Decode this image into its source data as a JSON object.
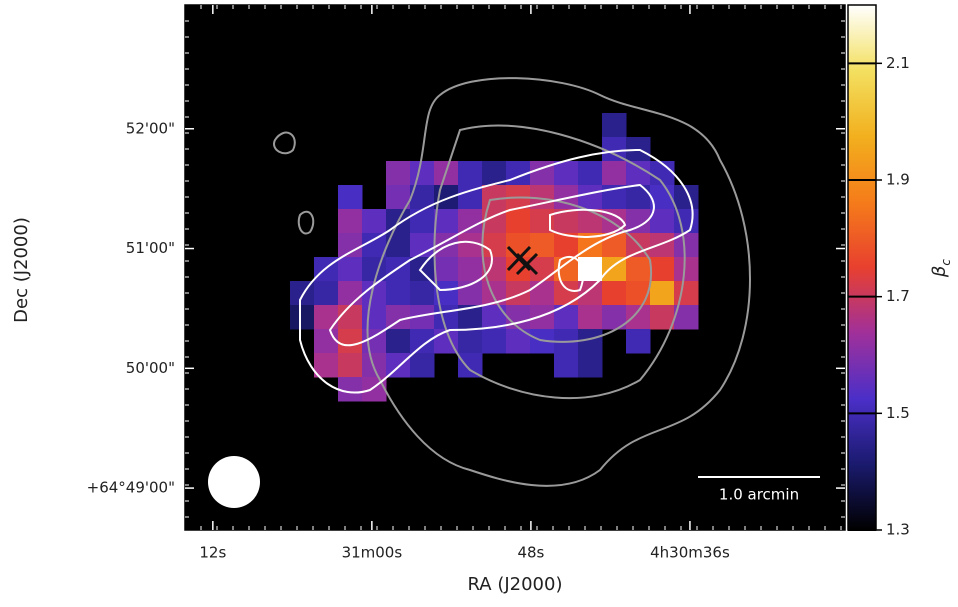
{
  "chart_data": {
    "type": "image",
    "xlabel": "RA (J2000)",
    "ylabel": "Dec (J2000)",
    "xlim": [
      74.1,
      24.3
    ],
    "xticks": [
      {
        "value": 72,
        "label": "12s"
      },
      {
        "value": 60,
        "label": "31m00s"
      },
      {
        "value": 48,
        "label": "48s"
      },
      {
        "value": 36,
        "label": "4h30m36s"
      }
    ],
    "ylim": [
      -21,
      242
    ],
    "yticks": [
      {
        "value": 0,
        "label": "+64°49'00\""
      },
      {
        "value": 60,
        "label": "50'00\""
      },
      {
        "value": 120,
        "label": "51'00\""
      },
      {
        "value": 180,
        "label": "52'00\""
      }
    ],
    "z": [
      [
        null,
        null,
        null,
        null,
        null,
        null,
        null,
        null,
        null,
        null,
        null,
        null,
        null,
        1.45,
        null,
        null,
        null
      ],
      [
        null,
        null,
        null,
        null,
        null,
        null,
        null,
        null,
        null,
        null,
        null,
        null,
        null,
        1.5,
        1.45,
        null,
        null
      ],
      [
        null,
        null,
        null,
        null,
        1.6,
        1.55,
        1.62,
        1.5,
        1.45,
        1.5,
        1.6,
        1.55,
        1.5,
        1.62,
        1.55,
        1.5,
        null
      ],
      [
        null,
        null,
        1.52,
        null,
        1.58,
        1.48,
        1.42,
        1.5,
        1.7,
        1.72,
        1.68,
        1.62,
        1.55,
        1.5,
        1.48,
        1.52,
        1.45
      ],
      [
        null,
        null,
        1.62,
        1.55,
        1.45,
        1.5,
        1.55,
        1.62,
        1.7,
        1.75,
        1.72,
        1.7,
        1.68,
        1.65,
        1.6,
        1.55,
        1.5
      ],
      [
        null,
        null,
        1.6,
        1.5,
        1.45,
        1.55,
        1.6,
        1.65,
        1.72,
        1.78,
        1.8,
        1.75,
        1.85,
        1.8,
        1.7,
        1.68,
        1.6
      ],
      [
        null,
        1.5,
        1.55,
        1.48,
        1.5,
        1.45,
        1.58,
        1.62,
        1.68,
        1.75,
        1.72,
        1.82,
        2.2,
        1.95,
        1.8,
        1.75,
        1.65
      ],
      [
        1.45,
        1.48,
        1.62,
        1.55,
        1.5,
        1.48,
        1.52,
        1.6,
        1.65,
        1.7,
        1.65,
        1.72,
        1.68,
        1.75,
        1.78,
        1.95,
        1.72
      ],
      [
        1.4,
        1.65,
        1.7,
        1.55,
        1.6,
        1.58,
        1.5,
        1.45,
        1.55,
        1.6,
        1.62,
        1.55,
        1.65,
        1.6,
        1.65,
        1.7,
        1.6
      ],
      [
        null,
        1.62,
        1.72,
        1.58,
        1.45,
        1.5,
        1.55,
        1.48,
        1.5,
        1.55,
        1.52,
        1.5,
        1.45,
        null,
        1.5,
        null,
        null
      ],
      [
        null,
        1.65,
        1.7,
        1.6,
        1.55,
        1.48,
        null,
        1.5,
        null,
        null,
        null,
        1.5,
        1.45,
        null,
        null,
        null,
        null
      ],
      [
        null,
        null,
        1.6,
        1.62,
        null,
        null,
        null,
        null,
        null,
        null,
        null,
        null,
        null,
        null,
        null,
        null,
        null
      ]
    ],
    "colorbar": {
      "symbol": "β",
      "subscript": "c",
      "clim": [
        1.3,
        2.2
      ],
      "ticks": [
        1.3,
        1.5,
        1.7,
        1.9,
        2.1
      ],
      "colors": [
        "#000000",
        "#1a1a6e",
        "#4b2fc8",
        "#a0309a",
        "#e8402f",
        "#f57c1a",
        "#f2b01e",
        "#f3e060",
        "#ffffff"
      ]
    },
    "scale_bar": "1.0 arcmin"
  }
}
